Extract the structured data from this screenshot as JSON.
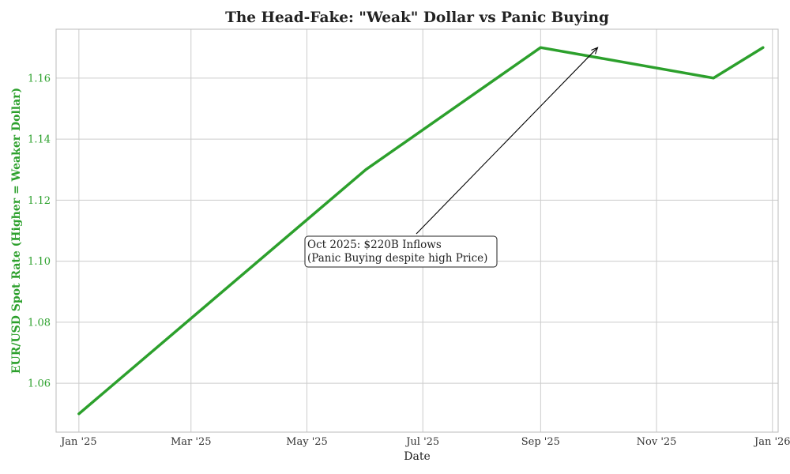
{
  "chart_data": {
    "type": "line",
    "title": "The Head-Fake: \"Weak\" Dollar vs Panic Buying",
    "xlabel": "Date",
    "ylabel": "EUR/USD Spot Rate (Higher = Weaker Dollar)",
    "x_tick_labels": [
      "Jan '25",
      "Mar '25",
      "May '25",
      "Jul '25",
      "Sep '25",
      "Nov '25",
      "Jan '26"
    ],
    "x_tick_dates": [
      "2025-01-01",
      "2025-03-01",
      "2025-05-01",
      "2025-07-01",
      "2025-09-01",
      "2025-11-01",
      "2026-01-01"
    ],
    "y_tick_labels": [
      "1.06",
      "1.08",
      "1.10",
      "1.12",
      "1.14",
      "1.16"
    ],
    "y_tick_values": [
      1.06,
      1.08,
      1.1,
      1.12,
      1.14,
      1.16
    ],
    "xlim": [
      "2024-12-20",
      "2026-01-04"
    ],
    "ylim": [
      1.044,
      1.176
    ],
    "grid": true,
    "series": [
      {
        "x": [
          "2025-01-01",
          "2025-06-01",
          "2025-09-01",
          "2025-12-01",
          "2025-12-27"
        ],
        "y": [
          1.05,
          1.13,
          1.17,
          1.16,
          1.17
        ]
      }
    ],
    "annotation": {
      "lines": [
        "Oct 2025: $220B Inflows",
        "(Panic Buying despite high Price)"
      ],
      "arrow_target": {
        "x": "2025-10-01",
        "y": 1.17
      }
    },
    "colors": {
      "line": "#2ca02c",
      "ylabel": "#2ca02c",
      "grid": "#cccccc",
      "spine": "#bbbbbb",
      "text": "#222222"
    }
  }
}
